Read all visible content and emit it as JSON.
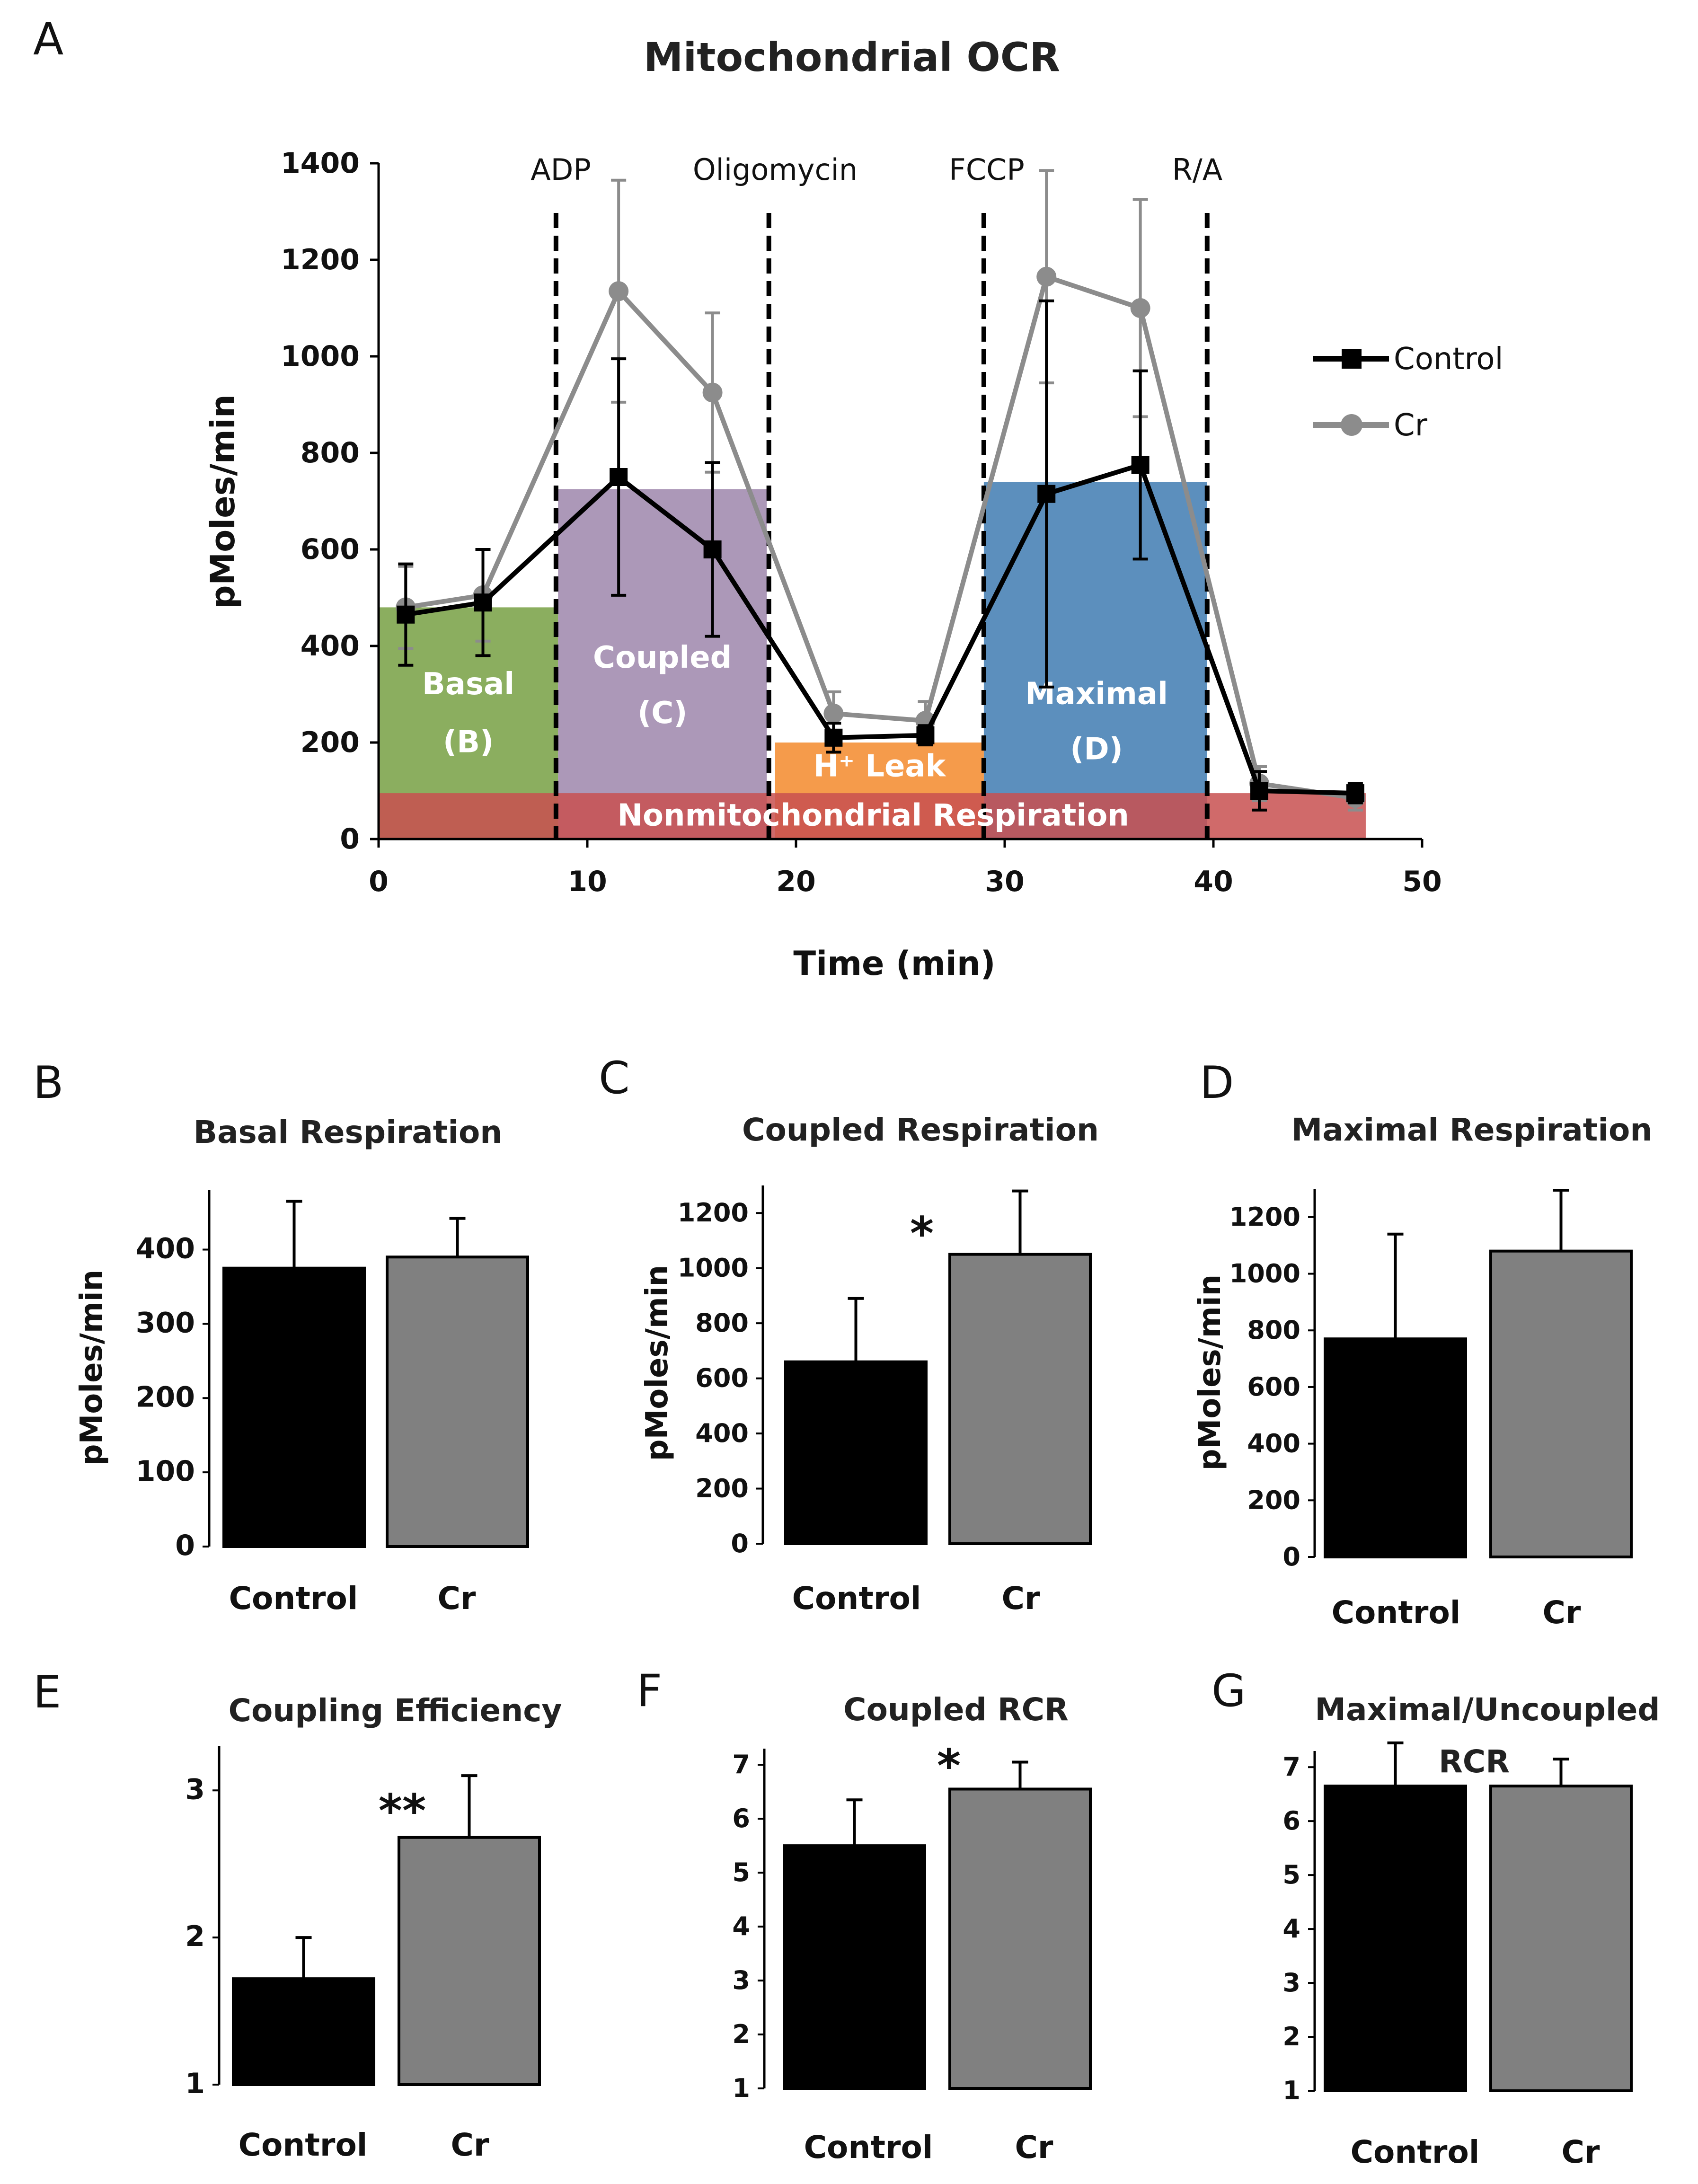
{
  "chart_data": [
    {
      "id": "A",
      "panel_letter": "A",
      "type": "line",
      "title": "Mitochondrial OCR",
      "xlabel": "Time (min)",
      "ylabel": "pMoles/min",
      "xlim": [
        0,
        50
      ],
      "ylim": [
        0,
        1400
      ],
      "xticks": [
        0,
        10,
        20,
        30,
        40,
        50
      ],
      "yticks": [
        0,
        200,
        400,
        600,
        800,
        1000,
        1200,
        1400
      ],
      "legend": {
        "position": "right",
        "entries": [
          "Control",
          "Cr"
        ]
      },
      "series": [
        {
          "name": "Control",
          "color": "#000000",
          "marker": "square",
          "x": [
            1.3,
            5.0,
            11.5,
            16.0,
            21.8,
            26.2,
            32.0,
            36.5,
            42.2,
            46.8
          ],
          "y": [
            465,
            490,
            750,
            600,
            210,
            215,
            715,
            775,
            100,
            95
          ],
          "err": [
            105,
            110,
            245,
            180,
            30,
            20,
            400,
            195,
            40,
            20
          ]
        },
        {
          "name": "Cr",
          "color": "#8c8c8c",
          "marker": "circle",
          "x": [
            1.3,
            5.0,
            11.5,
            16.0,
            21.8,
            26.2,
            32.0,
            36.5,
            42.2,
            46.8
          ],
          "y": [
            480,
            505,
            1135,
            925,
            260,
            245,
            1165,
            1100,
            115,
            85
          ],
          "err": [
            85,
            95,
            230,
            165,
            45,
            40,
            220,
            225,
            35,
            25
          ]
        }
      ],
      "events": [
        {
          "label": "ADP",
          "x": 8.5
        },
        {
          "label": "Oligomycin",
          "x": 18.7
        },
        {
          "label": "FCCP",
          "x": 29.0
        },
        {
          "label": "R/A",
          "x": 39.7
        }
      ],
      "regions": [
        {
          "label": "Basal",
          "sublabel": "(B)",
          "x0": 0,
          "x1": 8.6,
          "y0": 0,
          "y1": 480,
          "color": "#77a043"
        },
        {
          "label": "Coupled",
          "sublabel": "(C)",
          "x0": 8.6,
          "x1": 18.6,
          "y0": 0,
          "y1": 725,
          "color": "#9e86ac"
        },
        {
          "label": "H⁺ Leak",
          "sublabel": "",
          "x0": 19.0,
          "x1": 29.0,
          "y0": 0,
          "y1": 200,
          "color": "#f3892b"
        },
        {
          "label": "Maximal",
          "sublabel": "(D)",
          "x0": 29.0,
          "x1": 39.7,
          "y0": 0,
          "y1": 740,
          "color": "#3f7bb1"
        },
        {
          "label": "Nonmitochondrial Respiration",
          "sublabel": "",
          "x0": 0,
          "x1": 47.3,
          "y0": 0,
          "y1": 95,
          "color": "#c85050"
        }
      ]
    },
    {
      "id": "B",
      "panel_letter": "B",
      "type": "bar",
      "title": "Basal Respiration",
      "ylabel": "pMoles/min",
      "categories": [
        "Control",
        "Cr"
      ],
      "values": [
        375,
        390
      ],
      "errors": [
        90,
        52
      ],
      "ylim": [
        0,
        480
      ],
      "yticks": [
        0,
        100,
        200,
        300,
        400
      ],
      "significance": ""
    },
    {
      "id": "C",
      "panel_letter": "C",
      "type": "bar",
      "title": "Coupled Respiration",
      "ylabel": "pMoles/min",
      "categories": [
        "Control",
        "Cr"
      ],
      "values": [
        660,
        1050
      ],
      "errors": [
        230,
        230
      ],
      "ylim": [
        0,
        1300
      ],
      "yticks": [
        0,
        200,
        400,
        600,
        800,
        1000,
        1200
      ],
      "significance": "*"
    },
    {
      "id": "D",
      "panel_letter": "D",
      "type": "bar",
      "title": "Maximal Respiration",
      "ylabel": "pMoles/min",
      "categories": [
        "Control",
        "Cr"
      ],
      "values": [
        770,
        1080
      ],
      "errors": [
        370,
        215
      ],
      "ylim": [
        0,
        1300
      ],
      "yticks": [
        0,
        200,
        400,
        600,
        800,
        1000,
        1200
      ],
      "significance": ""
    },
    {
      "id": "E",
      "panel_letter": "E",
      "type": "bar",
      "title": "Coupling Efficiency",
      "ylabel": "",
      "categories": [
        "Control",
        "Cr"
      ],
      "values": [
        1.72,
        2.68
      ],
      "errors": [
        0.28,
        0.42
      ],
      "ylim": [
        1,
        3.3
      ],
      "yticks": [
        1,
        2,
        3
      ],
      "significance": "**"
    },
    {
      "id": "F",
      "panel_letter": "F",
      "type": "bar",
      "title": "Coupled RCR",
      "ylabel": "",
      "categories": [
        "Control",
        "Cr"
      ],
      "values": [
        5.5,
        6.55
      ],
      "errors": [
        0.85,
        0.5
      ],
      "ylim": [
        1,
        7.3
      ],
      "yticks": [
        1,
        2,
        3,
        4,
        5,
        6,
        7
      ],
      "significance": "*"
    },
    {
      "id": "G",
      "panel_letter": "G",
      "type": "bar",
      "title": "Maximal/Uncoupled",
      "title_line2": "RCR",
      "ylabel": "",
      "categories": [
        "Control",
        "Cr"
      ],
      "values": [
        6.65,
        6.65
      ],
      "errors": [
        0.8,
        0.5
      ],
      "ylim": [
        1,
        7.3
      ],
      "yticks": [
        1,
        2,
        3,
        4,
        5,
        6,
        7
      ],
      "significance": ""
    }
  ],
  "colors": {
    "control": "#000000",
    "cr": "#808080",
    "cr_line": "#8c8c8c"
  }
}
